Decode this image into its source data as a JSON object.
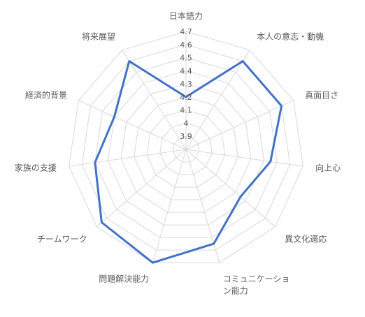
{
  "chart_data": {
    "type": "radar",
    "title": "",
    "categories": [
      "日本語力",
      "本人の意志・動機",
      "真面目さ",
      "向上心",
      "異文化適応",
      "コミュニケーション能力",
      "問題解決能力",
      "チームワーク",
      "家族の支援",
      "経済的背景",
      "将来展望"
    ],
    "category_label_lines": [
      [
        "日本語力"
      ],
      [
        "本人の意志・動機"
      ],
      [
        "真面目さ"
      ],
      [
        "向上心"
      ],
      [
        "異文化適応"
      ],
      [
        "コミュニケーショ",
        "ン能力"
      ],
      [
        "問題解決能力"
      ],
      [
        "チームワーク"
      ],
      [
        "家族の支援"
      ],
      [
        "経済的背景"
      ],
      [
        "将来展望"
      ]
    ],
    "series": [
      {
        "values": [
          4.2,
          4.6,
          4.6,
          4.45,
          4.35,
          4.55,
          4.7,
          4.65,
          4.5,
          4.4,
          4.6
        ]
      }
    ],
    "rlim": [
      3.8,
      4.7
    ],
    "ticks": [
      3.9,
      4.0,
      4.1,
      4.2,
      4.3,
      4.4,
      4.5,
      4.6,
      4.7
    ],
    "tick_labels": [
      "3.9",
      "4",
      "4.1",
      "4.2",
      "4.3",
      "4.4",
      "4.5",
      "4.6",
      "4.7"
    ],
    "grid": true,
    "legend": "none",
    "colors": {
      "series": "#4472c4",
      "grid": "#d9d9d9",
      "text": "#595959"
    }
  }
}
